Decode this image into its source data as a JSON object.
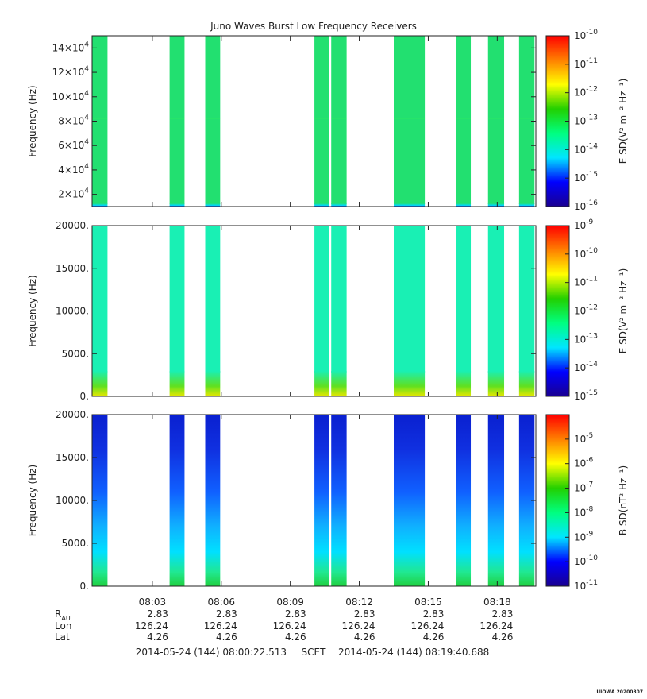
{
  "chart_data": [
    {
      "type": "heatmap",
      "title": "Juno Waves Burst Low Frequency Receivers",
      "ylabel": "Frequency (Hz)",
      "ylim": [
        10000,
        150000
      ],
      "y_ticks": [
        {
          "value": 20000,
          "label": "2×10",
          "exp": "4"
        },
        {
          "value": 40000,
          "label": "4×10",
          "exp": "4"
        },
        {
          "value": 60000,
          "label": "6×10",
          "exp": "4"
        },
        {
          "value": 80000,
          "label": "8×10",
          "exp": "4"
        },
        {
          "value": 100000,
          "label": "10×10",
          "exp": "4"
        },
        {
          "value": 120000,
          "label": "12×10",
          "exp": "4"
        },
        {
          "value": 140000,
          "label": "14×10",
          "exp": "4"
        }
      ],
      "colorbar": {
        "label": "E SD(V² m⁻² Hz⁻¹)",
        "range_exp": [
          -16,
          -10
        ],
        "tick_exps": [
          "-16",
          "-15",
          "-14",
          "-13",
          "-12",
          "-11",
          "-10"
        ]
      },
      "band_fill": "#22e070"
    },
    {
      "type": "heatmap",
      "ylabel": "Frequency (Hz)",
      "ylim": [
        0,
        20000
      ],
      "y_ticks": [
        {
          "value": 0,
          "label": "0."
        },
        {
          "value": 5000,
          "label": "5000."
        },
        {
          "value": 10000,
          "label": "10000."
        },
        {
          "value": 15000,
          "label": "15000."
        },
        {
          "value": 20000,
          "label": "20000."
        }
      ],
      "colorbar": {
        "label": "E SD(V² m⁻² Hz⁻¹)",
        "range_exp": [
          -15,
          -9
        ],
        "tick_exps": [
          "-15",
          "-14",
          "-13",
          "-12",
          "-11",
          "-10",
          "-9"
        ]
      },
      "band_fill": "#19f0b4"
    },
    {
      "type": "heatmap",
      "ylabel": "Frequency (Hz)",
      "ylim": [
        0,
        20000
      ],
      "y_ticks": [
        {
          "value": 0,
          "label": "0."
        },
        {
          "value": 5000,
          "label": "5000."
        },
        {
          "value": 10000,
          "label": "10000."
        },
        {
          "value": 15000,
          "label": "15000."
        },
        {
          "value": 20000,
          "label": "20000."
        }
      ],
      "colorbar": {
        "label": "B SD(nT² Hz⁻¹)",
        "range_exp": [
          -11,
          -4
        ],
        "tick_exps": [
          "-11",
          "-10",
          "-9",
          "-8",
          "-7",
          "-6",
          "-5"
        ]
      },
      "band_fill": "#1030e0"
    }
  ],
  "time_axis": {
    "start_min": 0.38,
    "end_min": 19.68,
    "ticks": [
      {
        "min": 3,
        "label": "08:03"
      },
      {
        "min": 6,
        "label": "08:06"
      },
      {
        "min": 9,
        "label": "08:09"
      },
      {
        "min": 12,
        "label": "08:12"
      },
      {
        "min": 15,
        "label": "08:15"
      },
      {
        "min": 18,
        "label": "08:18"
      }
    ]
  },
  "bursts_min": [
    [
      0.38,
      1.05
    ],
    [
      3.75,
      4.4
    ],
    [
      5.3,
      5.95
    ],
    [
      10.05,
      10.7
    ],
    [
      10.78,
      11.45
    ],
    [
      13.5,
      14.85
    ],
    [
      16.2,
      16.85
    ],
    [
      17.6,
      18.3
    ],
    [
      18.95,
      19.62
    ]
  ],
  "ephemeris": [
    {
      "label": "R",
      "sub": "AU",
      "values": [
        "2.83",
        "2.83",
        "2.83",
        "2.83",
        "2.83",
        "2.83"
      ]
    },
    {
      "label": "Lon",
      "values": [
        "126.24",
        "126.24",
        "126.24",
        "126.24",
        "126.24",
        "126.24"
      ]
    },
    {
      "label": "Lat",
      "values": [
        "4.26",
        "4.26",
        "4.26",
        "4.26",
        "4.26",
        "4.26"
      ]
    }
  ],
  "time_range": {
    "start": "2014-05-24 (144) 08:00:22.513",
    "frame": "SCET",
    "end": "2014-05-24 (144) 08:19:40.688"
  },
  "credit": "UIOWA 20200307",
  "colors": {
    "rainbow": [
      "#1a0090",
      "#0000ff",
      "#00e6ff",
      "#00ff80",
      "#22d000",
      "#ffff00",
      "#ff8000",
      "#ff0000"
    ]
  }
}
